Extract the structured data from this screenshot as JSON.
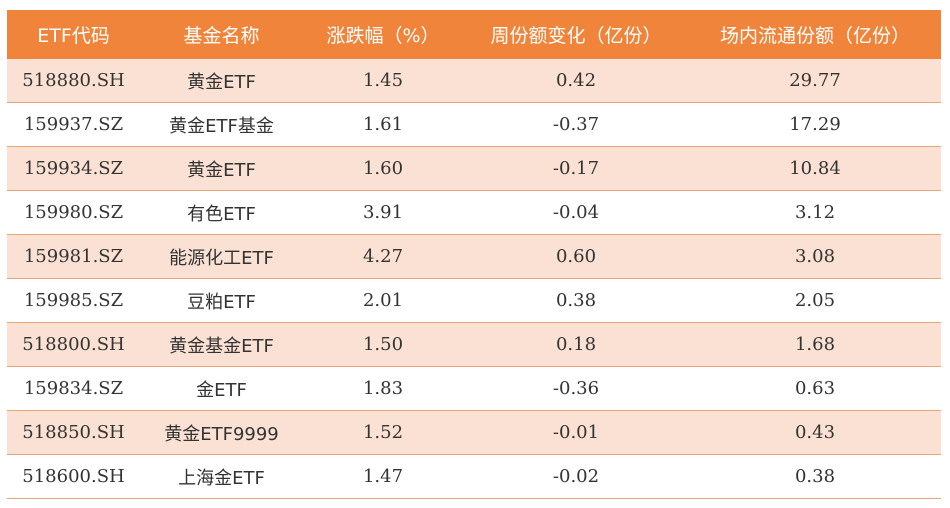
{
  "headers": [
    "ETF代码",
    "基金名称",
    "涨跌幅（%）",
    "周份额变化（亿份）",
    "场内流通份额（亿份）"
  ],
  "rows": [
    {
      "code": "518880.SH",
      "name": "黄金ETF",
      "change_pct": "1.45",
      "weekly_share_change": "0.42",
      "floating_shares": "29.77"
    },
    {
      "code": "159937.SZ",
      "name": "黄金ETF基金",
      "change_pct": "1.61",
      "weekly_share_change": "-0.37",
      "floating_shares": "17.29"
    },
    {
      "code": "159934.SZ",
      "name": "黄金ETF",
      "change_pct": "1.60",
      "weekly_share_change": "-0.17",
      "floating_shares": "10.84"
    },
    {
      "code": "159980.SZ",
      "name": "有色ETF",
      "change_pct": "3.91",
      "weekly_share_change": "-0.04",
      "floating_shares": "3.12"
    },
    {
      "code": "159981.SZ",
      "name": "能源化工ETF",
      "change_pct": "4.27",
      "weekly_share_change": "0.60",
      "floating_shares": "3.08"
    },
    {
      "code": "159985.SZ",
      "name": "豆粕ETF",
      "change_pct": "2.01",
      "weekly_share_change": "0.38",
      "floating_shares": "2.05"
    },
    {
      "code": "518800.SH",
      "name": "黄金基金ETF",
      "change_pct": "1.50",
      "weekly_share_change": "0.18",
      "floating_shares": "1.68"
    },
    {
      "code": "159834.SZ",
      "name": "金ETF",
      "change_pct": "1.83",
      "weekly_share_change": "-0.36",
      "floating_shares": "0.63"
    },
    {
      "code": "518850.SH",
      "name": "黄金ETF9999",
      "change_pct": "1.52",
      "weekly_share_change": "-0.01",
      "floating_shares": "0.43"
    },
    {
      "code": "518600.SH",
      "name": "上海金ETF",
      "change_pct": "1.47",
      "weekly_share_change": "-0.02",
      "floating_shares": "0.38"
    }
  ],
  "colors": {
    "header_bg": "#f0843a",
    "header_text": "#ffffff",
    "stripe_bg": "#fbe1d3",
    "row_border": "#e8a577",
    "cell_text": "#333333"
  }
}
